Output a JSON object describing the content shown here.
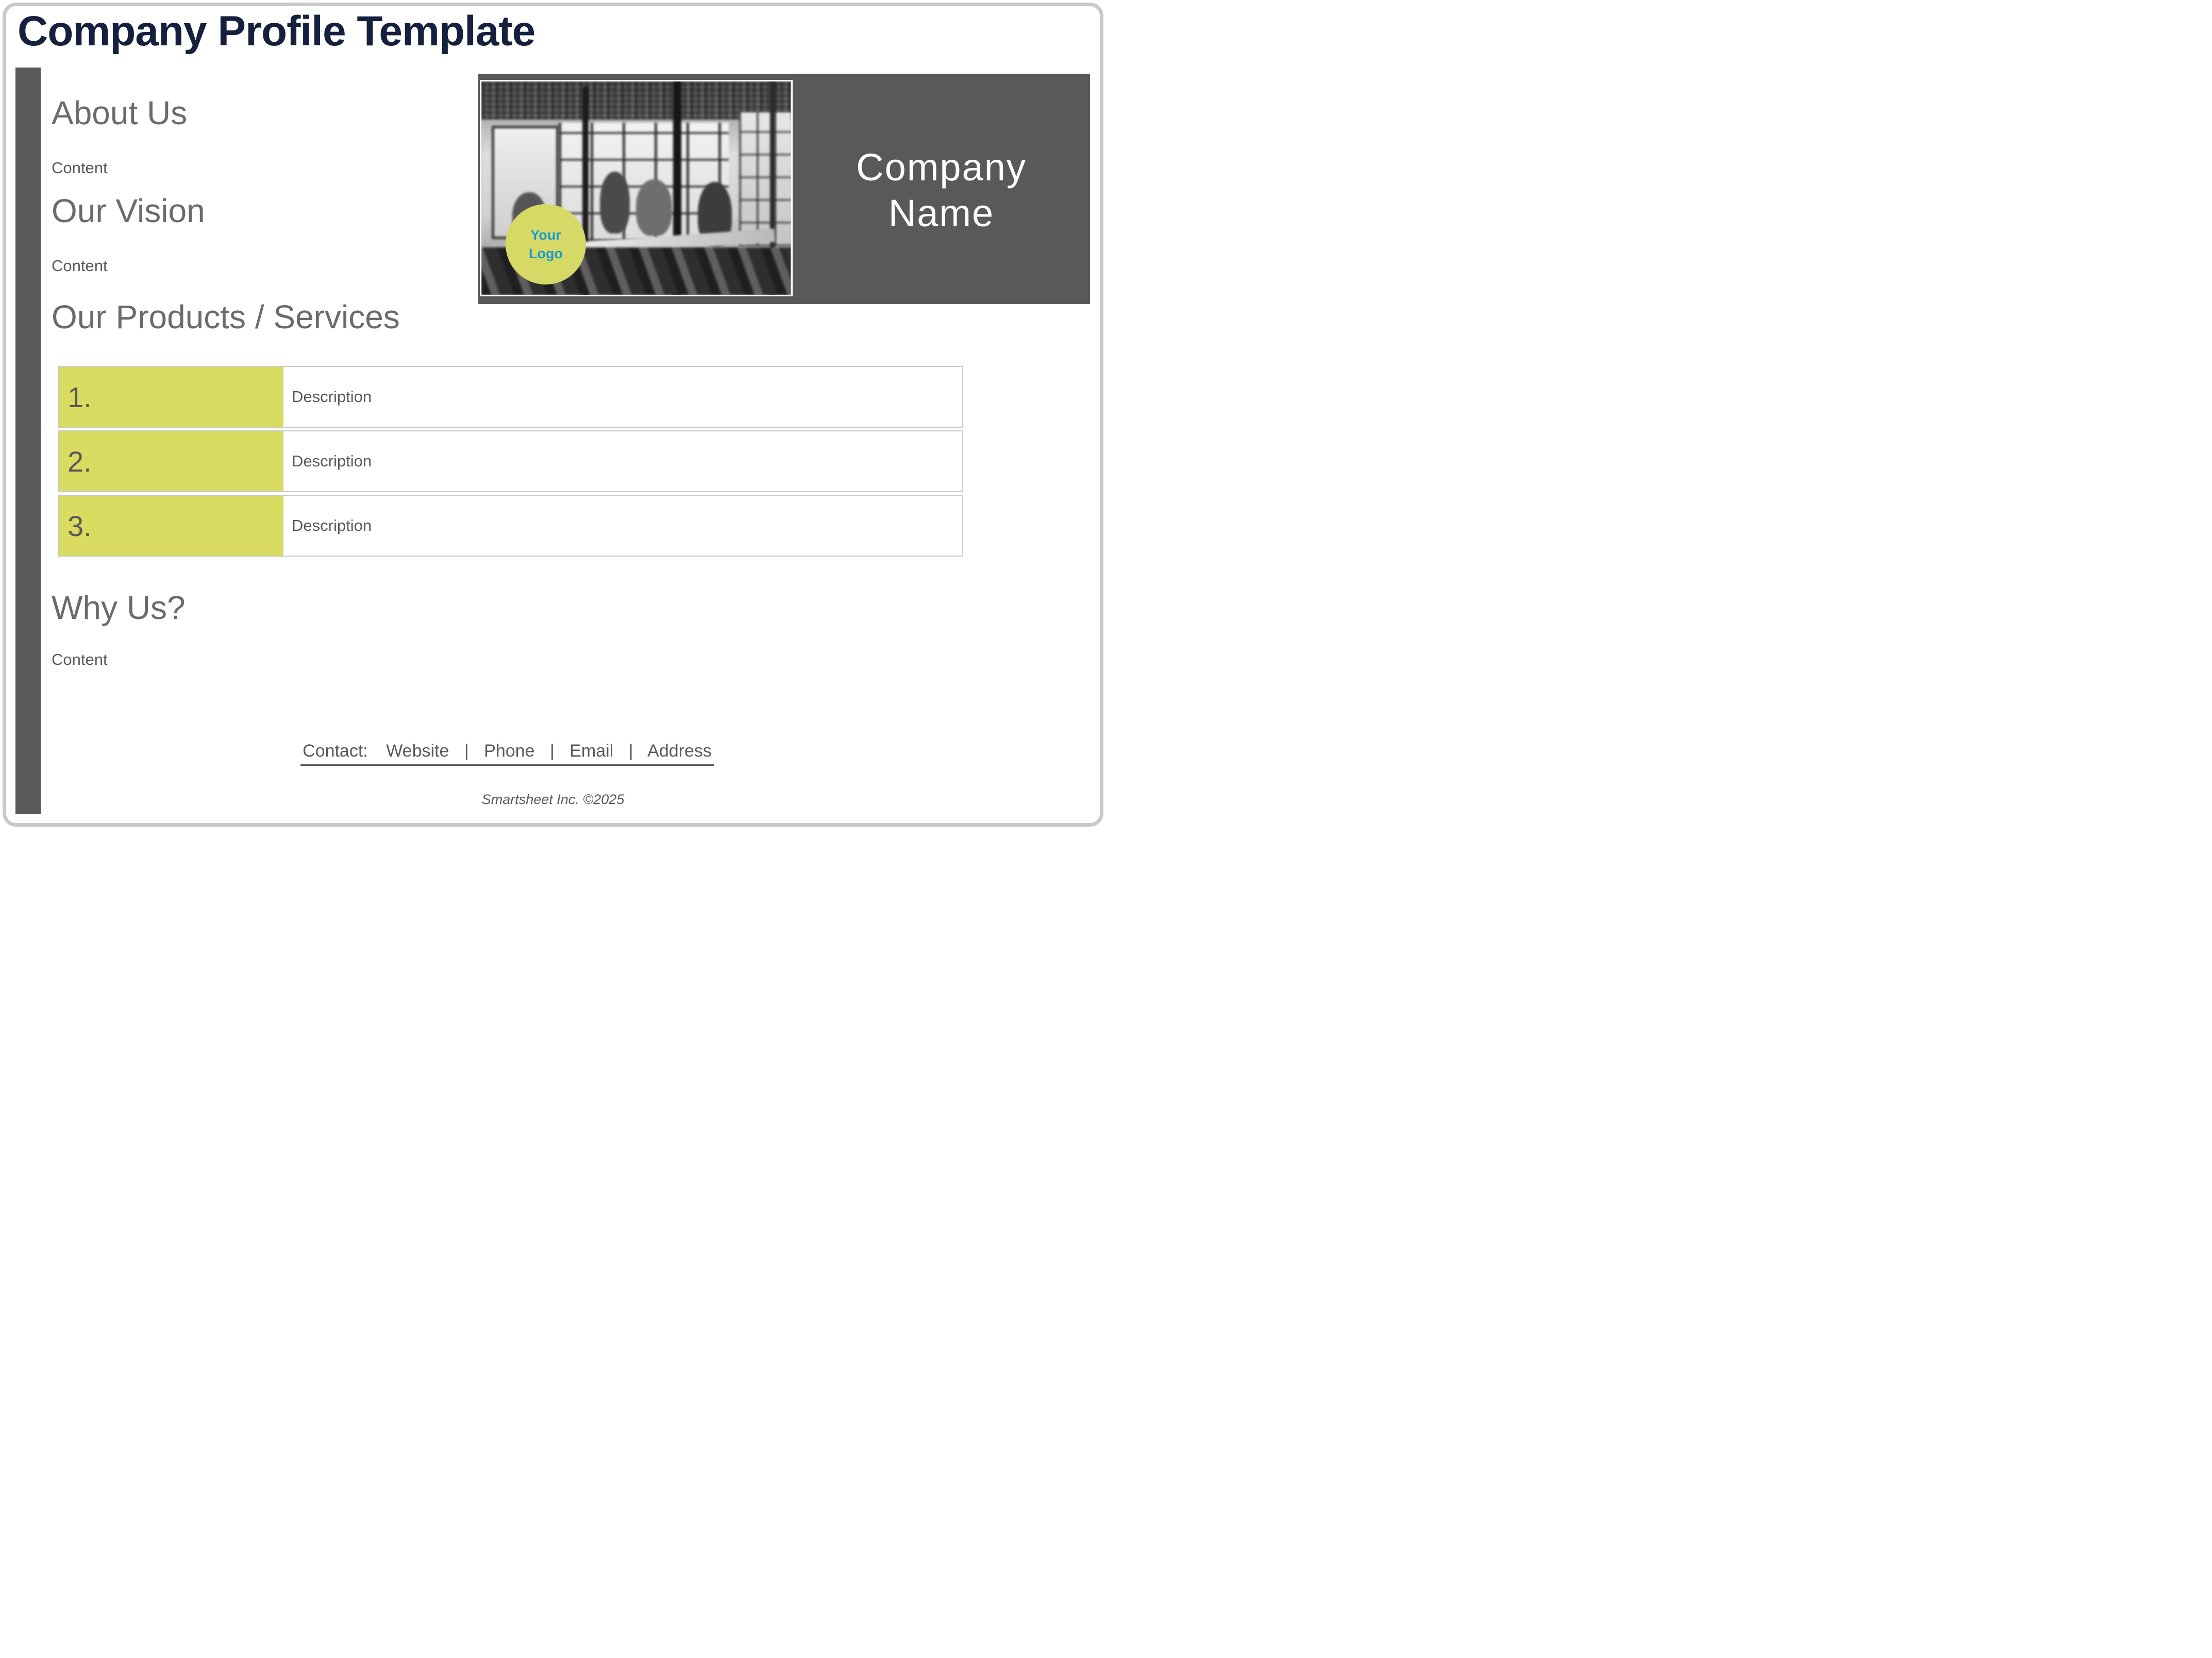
{
  "title": "Company Profile Template",
  "header": {
    "company_name": "Company Name",
    "logo": {
      "line1": "Your",
      "line2": "Logo"
    }
  },
  "sections": {
    "about": {
      "heading": "About Us",
      "body": "Content"
    },
    "vision": {
      "heading": "Our Vision",
      "body": "Content"
    },
    "products": {
      "heading": "Our Products / Services"
    },
    "why": {
      "heading": "Why Us?",
      "body": "Content"
    }
  },
  "services_table": {
    "rows": [
      {
        "number": "1.",
        "description": "Description"
      },
      {
        "number": "2.",
        "description": "Description"
      },
      {
        "number": "3.",
        "description": "Description"
      }
    ]
  },
  "contact": {
    "label": "Contact:",
    "separator": "|",
    "items": [
      "Website",
      "Phone",
      "Email",
      "Address"
    ]
  },
  "footer": "Smartsheet Inc. ©2025",
  "colors": {
    "title_navy": "#14203d",
    "accent_gray": "#595959",
    "heading_gray": "#6b6b6b",
    "accent_yellow": "#d9dc60",
    "logo_blue": "#1a9ad0",
    "border_gray": "#c9c9c9"
  }
}
